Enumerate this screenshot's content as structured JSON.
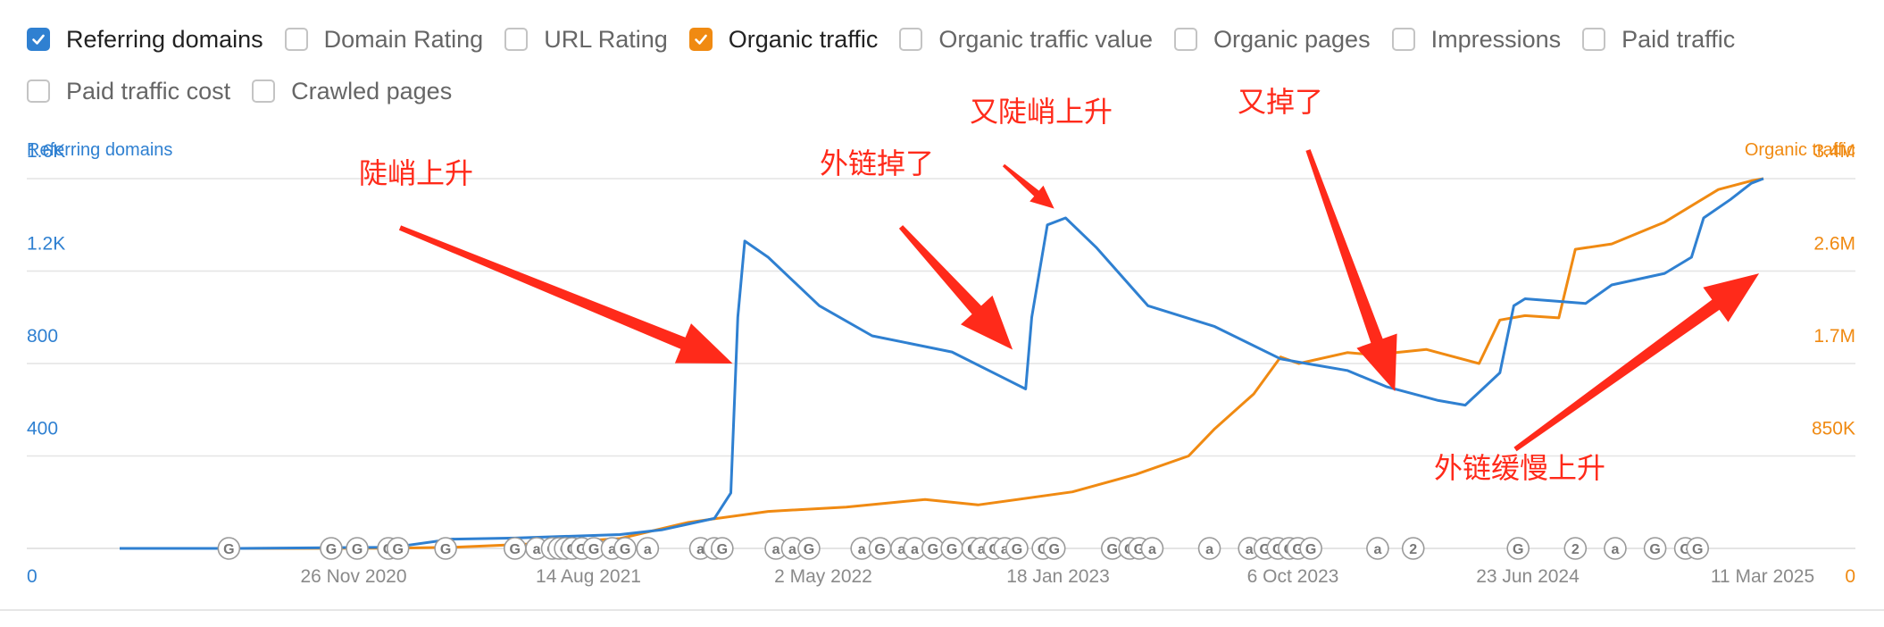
{
  "legend": {
    "items": [
      {
        "label": "Referring domains",
        "checked": true,
        "color": "#2f80d1"
      },
      {
        "label": "Domain Rating",
        "checked": false
      },
      {
        "label": "URL Rating",
        "checked": false
      },
      {
        "label": "Organic traffic",
        "checked": true,
        "color": "#f08a12"
      },
      {
        "label": "Organic traffic value",
        "checked": false
      },
      {
        "label": "Organic pages",
        "checked": false
      },
      {
        "label": "Impressions",
        "checked": false
      },
      {
        "label": "Paid traffic",
        "checked": false
      },
      {
        "label": "Paid traffic cost",
        "checked": false
      },
      {
        "label": "Crawled pages",
        "checked": false
      }
    ]
  },
  "chart_data": {
    "type": "line",
    "y_left_label": "Referring domains",
    "y_right_label": "Organic traffic",
    "y_left_ticks": [
      "0",
      "400",
      "800",
      "1.2K",
      "1.6K"
    ],
    "y_right_ticks": [
      "0",
      "850K",
      "1.7M",
      "2.6M",
      "3.4M"
    ],
    "y_left_range": [
      0,
      1600
    ],
    "y_right_range": [
      0,
      3400000
    ],
    "x_ticks": [
      "26 Nov 2020",
      "14 Aug 2021",
      "2 May 2022",
      "18 Jan 2023",
      "6 Oct 2023",
      "23 Jun 2024",
      "11 Mar 2025"
    ],
    "grid": true,
    "colors": {
      "referring_domains": "#2f80d1",
      "organic_traffic": "#f08a12",
      "annotation": "#ff2a1a"
    },
    "series": [
      {
        "name": "Referring domains",
        "axis": "left",
        "points": [
          [
            "2020-01-15",
            0
          ],
          [
            "2020-06-01",
            0
          ],
          [
            "2020-11-26",
            5
          ],
          [
            "2021-02-01",
            40
          ],
          [
            "2021-04-15",
            45
          ],
          [
            "2021-08-14",
            60
          ],
          [
            "2021-10-01",
            80
          ],
          [
            "2021-12-01",
            130
          ],
          [
            "2021-12-20",
            240
          ],
          [
            "2021-12-28",
            1000
          ],
          [
            "2022-01-05",
            1330
          ],
          [
            "2022-02-01",
            1260
          ],
          [
            "2022-04-01",
            1050
          ],
          [
            "2022-06-01",
            920
          ],
          [
            "2022-09-01",
            850
          ],
          [
            "2022-11-01",
            735
          ],
          [
            "2022-11-25",
            690
          ],
          [
            "2022-12-02",
            1000
          ],
          [
            "2022-12-20",
            1400
          ],
          [
            "2023-01-10",
            1430
          ],
          [
            "2023-02-15",
            1300
          ],
          [
            "2023-04-15",
            1050
          ],
          [
            "2023-07-01",
            960
          ],
          [
            "2023-09-15",
            820
          ],
          [
            "2023-10-15",
            800
          ],
          [
            "2023-12-01",
            770
          ],
          [
            "2024-01-15",
            700
          ],
          [
            "2024-03-15",
            640
          ],
          [
            "2024-04-15",
            620
          ],
          [
            "2024-05-25",
            760
          ],
          [
            "2024-06-10",
            1050
          ],
          [
            "2024-06-23",
            1080
          ],
          [
            "2024-09-01",
            1060
          ],
          [
            "2024-10-01",
            1140
          ],
          [
            "2024-12-01",
            1190
          ],
          [
            "2025-01-01",
            1260
          ],
          [
            "2025-01-15",
            1430
          ],
          [
            "2025-02-15",
            1510
          ],
          [
            "2025-03-11",
            1580
          ],
          [
            "2025-03-25",
            1600
          ]
        ]
      },
      {
        "name": "Organic traffic",
        "axis": "right",
        "points": [
          [
            "2020-01-15",
            0
          ],
          [
            "2020-06-01",
            0
          ],
          [
            "2020-11-26",
            2000
          ],
          [
            "2021-02-01",
            10000
          ],
          [
            "2021-05-01",
            40000
          ],
          [
            "2021-08-14",
            90000
          ],
          [
            "2021-11-01",
            240000
          ],
          [
            "2022-02-01",
            340000
          ],
          [
            "2022-05-02",
            380000
          ],
          [
            "2022-08-01",
            450000
          ],
          [
            "2022-10-01",
            400000
          ],
          [
            "2023-01-18",
            520000
          ],
          [
            "2023-04-01",
            680000
          ],
          [
            "2023-06-01",
            850000
          ],
          [
            "2023-07-01",
            1100000
          ],
          [
            "2023-08-15",
            1420000
          ],
          [
            "2023-09-15",
            1760000
          ],
          [
            "2023-10-06",
            1700000
          ],
          [
            "2023-12-01",
            1800000
          ],
          [
            "2024-01-01",
            1780000
          ],
          [
            "2024-03-01",
            1830000
          ],
          [
            "2024-05-01",
            1700000
          ],
          [
            "2024-05-25",
            2100000
          ],
          [
            "2024-06-23",
            2140000
          ],
          [
            "2024-08-01",
            2120000
          ],
          [
            "2024-08-20",
            2750000
          ],
          [
            "2024-10-01",
            2800000
          ],
          [
            "2024-12-01",
            3000000
          ],
          [
            "2025-02-01",
            3300000
          ],
          [
            "2025-03-11",
            3380000
          ],
          [
            "2025-03-25",
            3400000
          ]
        ]
      }
    ],
    "markers": [
      {
        "date": "2020-05-20",
        "label": "G"
      },
      {
        "date": "2020-09-15",
        "label": "G"
      },
      {
        "date": "2020-10-15",
        "label": "G"
      },
      {
        "date": "2020-11-20",
        "label": "G"
      },
      {
        "date": "2020-12-01",
        "label": "G"
      },
      {
        "date": "2021-01-25",
        "label": "G"
      },
      {
        "date": "2021-04-15",
        "label": "G"
      },
      {
        "date": "2021-05-10",
        "label": "a"
      },
      {
        "date": "2021-05-28",
        "label": "G"
      },
      {
        "date": "2021-06-05",
        "label": "G"
      },
      {
        "date": "2021-06-12",
        "label": "G"
      },
      {
        "date": "2021-06-20",
        "label": "G"
      },
      {
        "date": "2021-07-01",
        "label": "G"
      },
      {
        "date": "2021-07-15",
        "label": "G"
      },
      {
        "date": "2021-08-05",
        "label": "a"
      },
      {
        "date": "2021-08-20",
        "label": "G"
      },
      {
        "date": "2021-09-15",
        "label": "a"
      },
      {
        "date": "2021-11-15",
        "label": "a"
      },
      {
        "date": "2021-12-01",
        "label": "a"
      },
      {
        "date": "2021-12-10",
        "label": "G"
      },
      {
        "date": "2022-02-10",
        "label": "a"
      },
      {
        "date": "2022-03-01",
        "label": "a"
      },
      {
        "date": "2022-03-20",
        "label": "G"
      },
      {
        "date": "2022-05-20",
        "label": "a"
      },
      {
        "date": "2022-06-10",
        "label": "G"
      },
      {
        "date": "2022-07-05",
        "label": "a"
      },
      {
        "date": "2022-07-20",
        "label": "a"
      },
      {
        "date": "2022-08-10",
        "label": "G"
      },
      {
        "date": "2022-09-01",
        "label": "G"
      },
      {
        "date": "2022-09-25",
        "label": "G"
      },
      {
        "date": "2022-10-05",
        "label": "a"
      },
      {
        "date": "2022-10-20",
        "label": "G"
      },
      {
        "date": "2022-11-01",
        "label": "a"
      },
      {
        "date": "2022-11-15",
        "label": "G"
      },
      {
        "date": "2022-12-15",
        "label": "G"
      },
      {
        "date": "2022-12-28",
        "label": "G"
      },
      {
        "date": "2023-03-05",
        "label": "G"
      },
      {
        "date": "2023-03-25",
        "label": "G"
      },
      {
        "date": "2023-04-05",
        "label": "G"
      },
      {
        "date": "2023-04-20",
        "label": "a"
      },
      {
        "date": "2023-06-25",
        "label": "a"
      },
      {
        "date": "2023-08-10",
        "label": "a"
      },
      {
        "date": "2023-08-28",
        "label": "G"
      },
      {
        "date": "2023-09-12",
        "label": "G"
      },
      {
        "date": "2023-09-25",
        "label": "G"
      },
      {
        "date": "2023-10-05",
        "label": "G"
      },
      {
        "date": "2023-10-20",
        "label": "G"
      },
      {
        "date": "2024-01-05",
        "label": "a"
      },
      {
        "date": "2024-02-15",
        "label": "2"
      },
      {
        "date": "2024-06-15",
        "label": "G"
      },
      {
        "date": "2024-08-20",
        "label": "2"
      },
      {
        "date": "2024-10-05",
        "label": "a"
      },
      {
        "date": "2024-11-20",
        "label": "G"
      },
      {
        "date": "2024-12-25",
        "label": "G"
      },
      {
        "date": "2025-01-08",
        "label": "G"
      }
    ]
  },
  "annotations": [
    {
      "text": "陡峭上升",
      "arrow_to": {
        "date": "2021-12-22",
        "value": 800
      }
    },
    {
      "text": "外链掉了",
      "arrow_to": {
        "date": "2022-11-10",
        "value": 860
      }
    },
    {
      "text": "又陡峭上升",
      "arrow_to": {
        "date": "2022-12-28",
        "value": 1470
      }
    },
    {
      "text": "又掉了",
      "arrow_to": {
        "date": "2024-01-25",
        "value": 680
      }
    },
    {
      "text": "外链缓慢上升",
      "arrow_to": {
        "date": "2025-03-20",
        "value": 1190
      }
    }
  ]
}
